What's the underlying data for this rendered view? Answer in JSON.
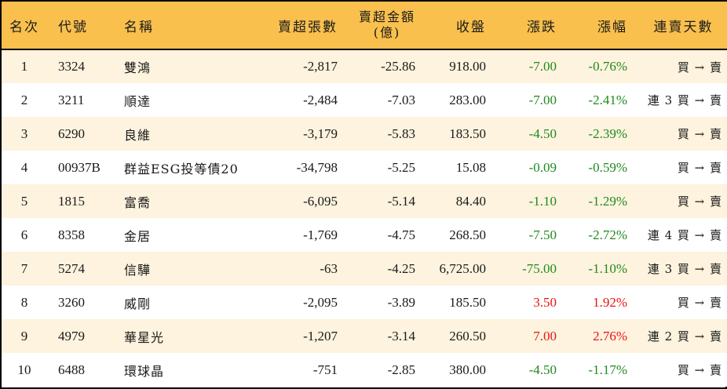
{
  "table": {
    "headers": {
      "rank": "名次",
      "code": "代號",
      "name": "名稱",
      "net_sell_volume": "賣超張數",
      "net_sell_amount_line1": "賣超金額",
      "net_sell_amount_line2": "(億)",
      "close": "收盤",
      "change": "漲跌",
      "change_pct": "漲幅",
      "streak": "連賣天數"
    },
    "colors": {
      "header_bg": "#f9c04d",
      "row_odd_bg": "#fdf3de",
      "row_even_bg": "#ffffff",
      "down": "#1f8a1f",
      "up": "#ee1111",
      "border": "#000000"
    },
    "rows": [
      {
        "rank": "1",
        "code": "3324",
        "name": "雙鴻",
        "volume": "-2,817",
        "amount": "-25.86",
        "close": "918.00",
        "change": "-7.00",
        "pct": "-0.76%",
        "direction": "down",
        "streak": "買 → 賣"
      },
      {
        "rank": "2",
        "code": "3211",
        "name": "順達",
        "volume": "-2,484",
        "amount": "-7.03",
        "close": "283.00",
        "change": "-7.00",
        "pct": "-2.41%",
        "direction": "down",
        "streak": "連 3 買 → 賣"
      },
      {
        "rank": "3",
        "code": "6290",
        "name": "良維",
        "volume": "-3,179",
        "amount": "-5.83",
        "close": "183.50",
        "change": "-4.50",
        "pct": "-2.39%",
        "direction": "down",
        "streak": "買 → 賣"
      },
      {
        "rank": "4",
        "code": "00937B",
        "name": "群益ESG投等債20",
        "volume": "-34,798",
        "amount": "-5.25",
        "close": "15.08",
        "change": "-0.09",
        "pct": "-0.59%",
        "direction": "down",
        "streak": "買 → 賣"
      },
      {
        "rank": "5",
        "code": "1815",
        "name": "富喬",
        "volume": "-6,095",
        "amount": "-5.14",
        "close": "84.40",
        "change": "-1.10",
        "pct": "-1.29%",
        "direction": "down",
        "streak": "買 → 賣"
      },
      {
        "rank": "6",
        "code": "8358",
        "name": "金居",
        "volume": "-1,769",
        "amount": "-4.75",
        "close": "268.50",
        "change": "-7.50",
        "pct": "-2.72%",
        "direction": "down",
        "streak": "連 4 買 → 賣"
      },
      {
        "rank": "7",
        "code": "5274",
        "name": "信驊",
        "volume": "-63",
        "amount": "-4.25",
        "close": "6,725.00",
        "change": "-75.00",
        "pct": "-1.10%",
        "direction": "down",
        "streak": "連 3 買 → 賣"
      },
      {
        "rank": "8",
        "code": "3260",
        "name": "威剛",
        "volume": "-2,095",
        "amount": "-3.89",
        "close": "185.50",
        "change": "3.50",
        "pct": "1.92%",
        "direction": "up",
        "streak": "買 → 賣"
      },
      {
        "rank": "9",
        "code": "4979",
        "name": "華星光",
        "volume": "-1,207",
        "amount": "-3.14",
        "close": "260.50",
        "change": "7.00",
        "pct": "2.76%",
        "direction": "up",
        "streak": "連 2 買 → 賣"
      },
      {
        "rank": "10",
        "code": "6488",
        "name": "環球晶",
        "volume": "-751",
        "amount": "-2.85",
        "close": "380.00",
        "change": "-4.50",
        "pct": "-1.17%",
        "direction": "down",
        "streak": "買 → 賣"
      }
    ]
  }
}
